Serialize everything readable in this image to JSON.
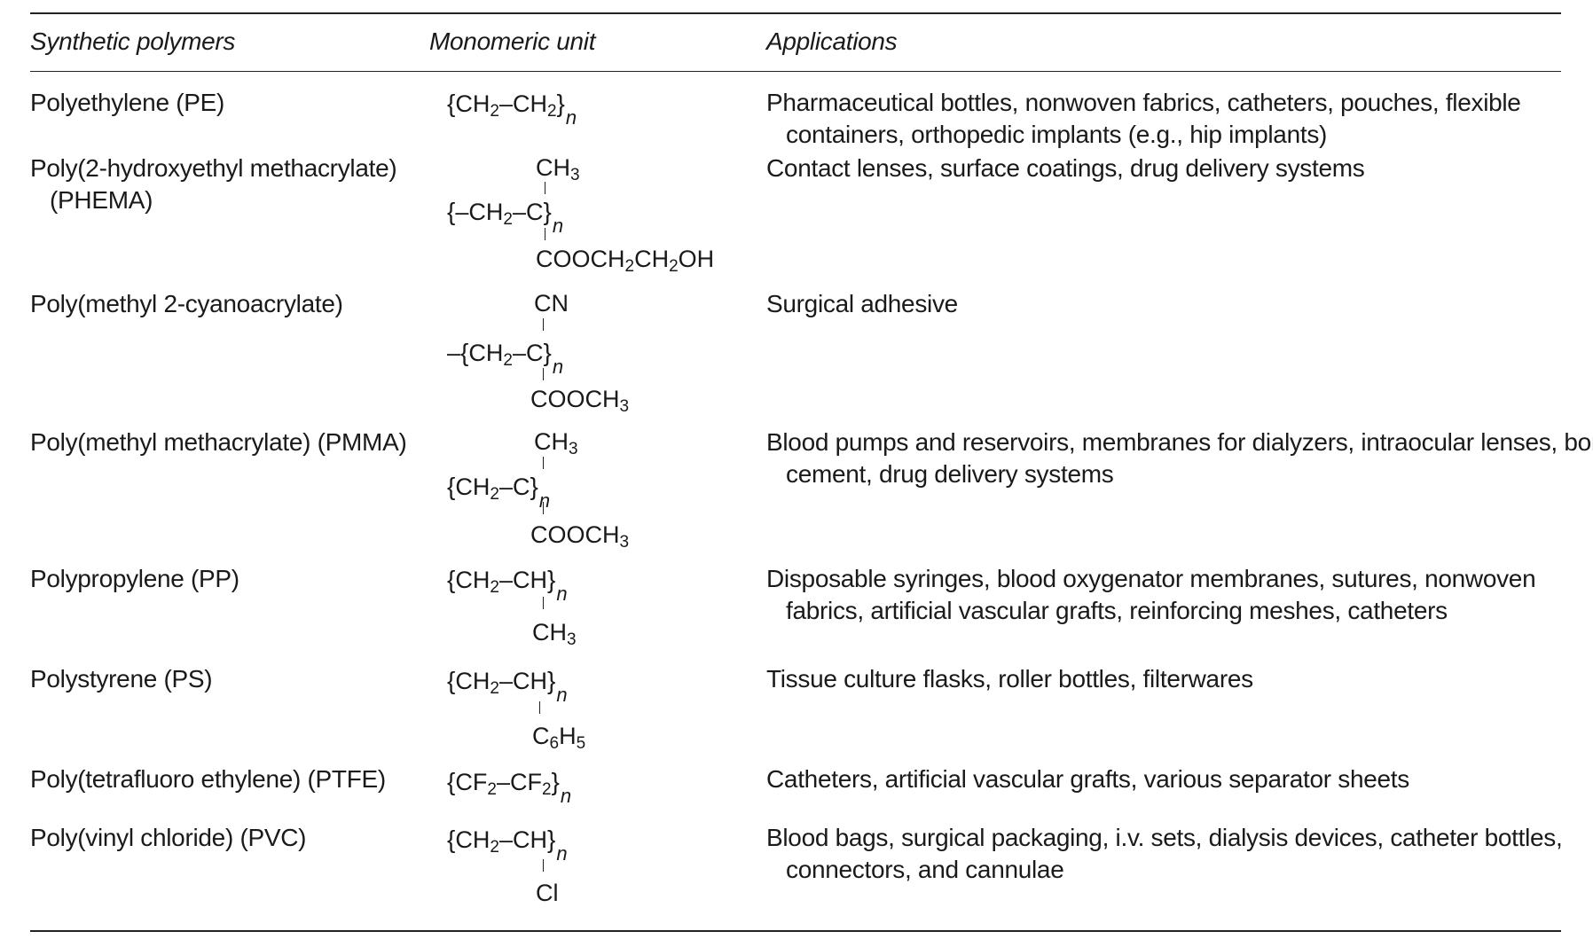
{
  "headers": {
    "polymers": "Synthetic polymers",
    "unit": "Monomeric unit",
    "applications": "Applications"
  },
  "rows": [
    {
      "name": [
        "Polyethylene (PE)"
      ],
      "unit": {
        "main": "CH2–CH2",
        "subscript": "n"
      },
      "applications": [
        "Pharmaceutical bottles, nonwoven fabrics, catheters, pouches, flexible",
        "containers, orthopedic implants (e.g., hip implants)"
      ]
    },
    {
      "name": [
        "Poly(2-hydroxyethyl methacrylate)",
        "(PHEMA)"
      ],
      "unit": {
        "top": "CH3",
        "main": "CH2–C",
        "subscript": "n",
        "bottom": "COOCH2CH2OH"
      },
      "applications": [
        "Contact lenses, surface coatings, drug delivery systems"
      ]
    },
    {
      "name": [
        "Poly(methyl 2-cyanoacrylate)"
      ],
      "unit": {
        "top": "CN",
        "main": "CH2–C",
        "subscript": "n",
        "bottom": "COOCH3"
      },
      "applications": [
        "Surgical adhesive"
      ]
    },
    {
      "name": [
        "Poly(methyl methacrylate) (PMMA)"
      ],
      "unit": {
        "top": "CH3",
        "main": "CH2–C",
        "subscript": "n",
        "bottom": "COOCH3"
      },
      "applications": [
        "Blood pumps and reservoirs, membranes for dialyzers, intraocular lenses, bone",
        "cement, drug delivery systems"
      ]
    },
    {
      "name": [
        "Polypropylene (PP)"
      ],
      "unit": {
        "main": "CH2–CH",
        "subscript": "n",
        "bottom": "CH3"
      },
      "applications": [
        "Disposable syringes, blood oxygenator membranes, sutures, nonwoven",
        "fabrics, artificial vascular grafts, reinforcing meshes, catheters"
      ]
    },
    {
      "name": [
        "Polystyrene (PS)"
      ],
      "unit": {
        "main": "CH2–CH",
        "subscript": "n",
        "bottom": "C6H5"
      },
      "applications": [
        "Tissue culture flasks, roller bottles, filterwares"
      ]
    },
    {
      "name": [
        "Poly(tetrafluoro ethylene) (PTFE)"
      ],
      "unit": {
        "main": "CF2–CF2",
        "subscript": "n"
      },
      "applications": [
        "Catheters, artificial vascular grafts, various separator sheets"
      ]
    },
    {
      "name": [
        "Poly(vinyl chloride) (PVC)"
      ],
      "unit": {
        "main": "CH2–CH",
        "subscript": "n",
        "bottom": "Cl"
      },
      "applications": [
        "Blood bags, surgical packaging, i.v. sets, dialysis devices, catheter bottles,",
        "connectors, and cannulae"
      ]
    }
  ]
}
